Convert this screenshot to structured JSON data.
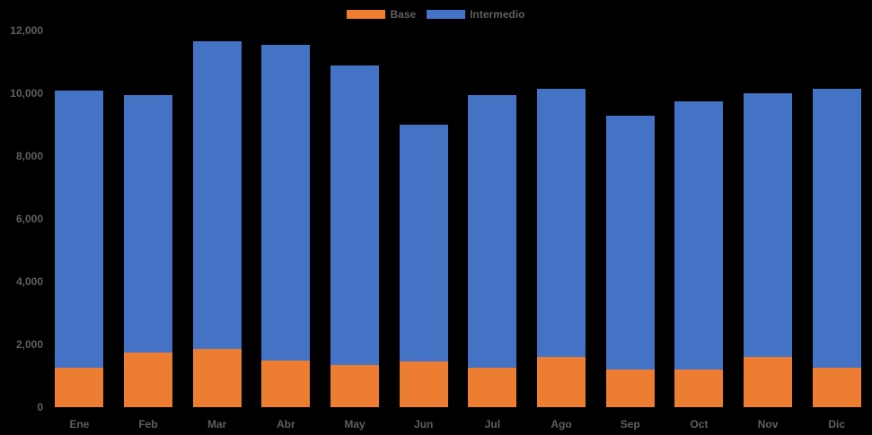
{
  "chart_data": {
    "type": "bar",
    "stacked": true,
    "title": "",
    "xlabel": "",
    "ylabel": "",
    "categories": [
      "Ene",
      "Feb",
      "Mar",
      "Abr",
      "May",
      "Jun",
      "Jul",
      "Ago",
      "Sep",
      "Oct",
      "Nov",
      "Dic"
    ],
    "series": [
      {
        "name": "Base",
        "color": "#ED7D31",
        "values": [
          1250,
          1750,
          1850,
          1500,
          1350,
          1450,
          1250,
          1600,
          1200,
          1200,
          1600,
          1250
        ]
      },
      {
        "name": "Intermedio",
        "color": "#4472C4",
        "values": [
          8850,
          8200,
          9800,
          10050,
          9550,
          7550,
          8700,
          8550,
          8100,
          8550,
          8400,
          8900
        ]
      }
    ],
    "stacked_totals": [
      10100,
      9950,
      11650,
      11550,
      10900,
      9000,
      9950,
      10150,
      9300,
      9750,
      10000,
      10150
    ],
    "ylim": [
      0,
      12000
    ],
    "ytick_step": 2000,
    "ytick_labels": [
      "0",
      "2,000",
      "4,000",
      "6,000",
      "8,000",
      "10,000",
      "12,000"
    ],
    "grid": false,
    "legend_position": "top-center",
    "colors": {
      "background": "#000000",
      "label_text": "#5f5f5f",
      "base_series": "#ED7D31",
      "intermedio_series": "#4472C4"
    }
  },
  "legend": {
    "items": [
      {
        "label": "Base",
        "color": "#ED7D31"
      },
      {
        "label": "Intermedio",
        "color": "#4472C4"
      }
    ]
  }
}
